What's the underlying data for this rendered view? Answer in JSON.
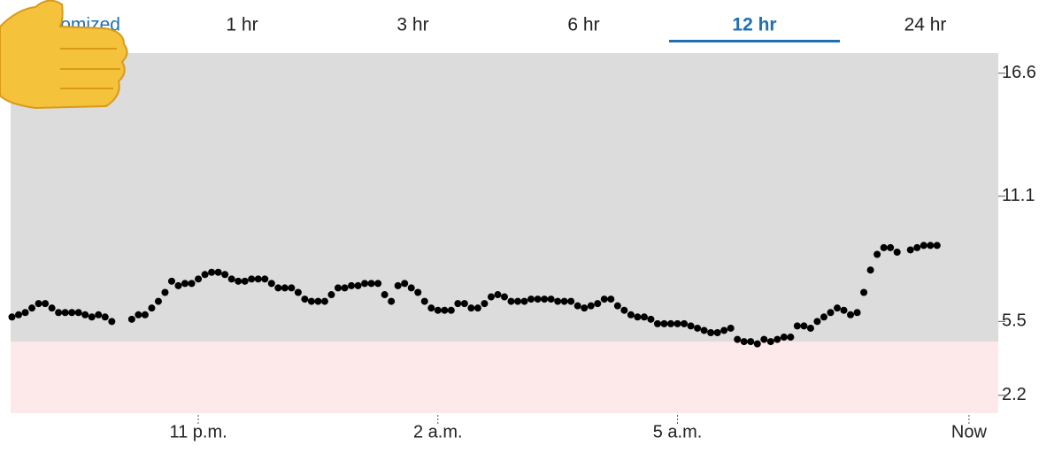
{
  "tabs": {
    "items": [
      "Customized",
      "1 hr",
      "3 hr",
      "6 hr",
      "12 hr",
      "24 hr"
    ],
    "active": 4
  },
  "chart_data": {
    "type": "scatter",
    "x": [
      -140,
      -135,
      -130,
      -125,
      -120,
      -115,
      -110,
      -105,
      -100,
      -95,
      -90,
      -85,
      -80,
      -75,
      -70,
      -65,
      -60,
      -55,
      -50,
      -45,
      -40,
      -35,
      -30,
      -25,
      -20,
      -15,
      -10,
      -5,
      0,
      5,
      10,
      15,
      20,
      25,
      30,
      35,
      40,
      45,
      50,
      55,
      60,
      65,
      70,
      75,
      80,
      85,
      90,
      95,
      100,
      105,
      110,
      115,
      120,
      125,
      130,
      135,
      140,
      145,
      150,
      155,
      160,
      165,
      170,
      175,
      180,
      185,
      190,
      195,
      200,
      205,
      210,
      215,
      220,
      225,
      230,
      235,
      240,
      245,
      250,
      255,
      260,
      265,
      270,
      275,
      280,
      285,
      290,
      295,
      300,
      305,
      310,
      315,
      320,
      325,
      330,
      335,
      340,
      345,
      350,
      355,
      360,
      365,
      370,
      375,
      380,
      385,
      390,
      395,
      400,
      405,
      410,
      415,
      420,
      425,
      430,
      435,
      440,
      445,
      450,
      455,
      460,
      465,
      470,
      475,
      480,
      485,
      490,
      495,
      500,
      505,
      510,
      515,
      520,
      525,
      530,
      535,
      540,
      545,
      550,
      555
    ],
    "values": [
      5.7,
      5.8,
      5.9,
      6.1,
      6.3,
      6.3,
      6.1,
      5.9,
      5.9,
      5.9,
      5.9,
      5.8,
      5.7,
      5.8,
      5.7,
      5.5,
      null,
      null,
      5.6,
      5.8,
      5.8,
      6.1,
      6.4,
      6.8,
      7.3,
      7.1,
      7.2,
      7.2,
      7.4,
      7.6,
      7.7,
      7.7,
      7.6,
      7.4,
      7.3,
      7.3,
      7.4,
      7.4,
      7.4,
      7.2,
      7.0,
      7.0,
      7.0,
      6.8,
      6.5,
      6.4,
      6.4,
      6.4,
      6.7,
      7.0,
      7.0,
      7.1,
      7.1,
      7.2,
      7.2,
      7.2,
      6.7,
      6.4,
      7.1,
      7.2,
      7.0,
      6.8,
      6.4,
      6.1,
      6.0,
      6.0,
      6.0,
      6.3,
      6.3,
      6.1,
      6.1,
      6.3,
      6.6,
      6.7,
      6.6,
      6.4,
      6.4,
      6.4,
      6.5,
      6.5,
      6.5,
      6.5,
      6.4,
      6.4,
      6.4,
      6.2,
      6.1,
      6.2,
      6.3,
      6.5,
      6.5,
      6.2,
      6.0,
      5.8,
      5.7,
      5.7,
      5.6,
      5.4,
      5.4,
      5.4,
      5.4,
      5.4,
      5.3,
      5.2,
      5.1,
      5.0,
      5.0,
      5.1,
      5.2,
      4.7,
      4.6,
      4.6,
      4.5,
      4.7,
      4.6,
      4.7,
      4.8,
      4.8,
      5.3,
      5.3,
      5.2,
      5.5,
      5.7,
      5.9,
      6.1,
      6.0,
      5.8,
      5.9,
      6.8,
      7.8,
      8.5,
      8.8,
      8.8,
      8.6,
      null,
      8.7,
      8.8,
      8.9,
      8.9,
      8.9
    ],
    "color": "#000000",
    "xlim": [
      -141,
      601
    ],
    "xticks": [
      {
        "value": 0,
        "label": "11 p.m."
      },
      {
        "value": 180,
        "label": "2 a.m."
      },
      {
        "value": 360,
        "label": "5 a.m."
      },
      {
        "value": 579,
        "label": "Now"
      }
    ],
    "ylim": [
      1.4,
      17.5
    ],
    "yticks": [
      2.2,
      5.5,
      11.1,
      16.6
    ],
    "bands": [
      {
        "from": 1.4,
        "to": 4.6,
        "color": "#fde8ea"
      },
      {
        "from": 4.6,
        "to": 17.5,
        "color": "#dcdcdc"
      }
    ]
  }
}
